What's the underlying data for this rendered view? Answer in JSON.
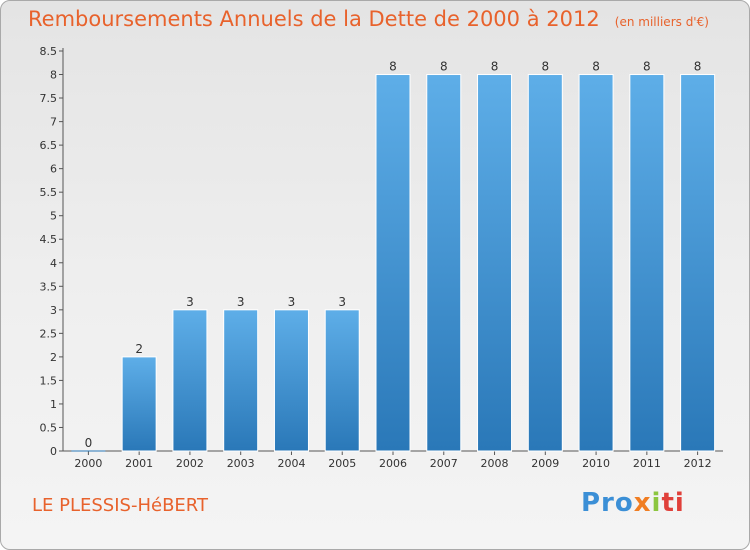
{
  "header": {
    "title": "Remboursements Annuels de la Dette de 2000 à 2012",
    "unit": "(en milliers d'€)"
  },
  "footer": {
    "commune": "LE PLESSIS-HéBERT",
    "logo_text": "Proxiti"
  },
  "colors": {
    "title": "#e8622c",
    "bar_light": "#5eaee8",
    "bar_dark": "#2a78b8"
  },
  "chart_data": {
    "type": "bar",
    "categories": [
      "2000",
      "2001",
      "2002",
      "2003",
      "2004",
      "2005",
      "2006",
      "2007",
      "2008",
      "2009",
      "2010",
      "2011",
      "2012"
    ],
    "values": [
      0,
      2,
      3,
      3,
      3,
      3,
      8,
      8,
      8,
      8,
      8,
      8,
      8
    ],
    "data_labels": [
      "0",
      "2",
      "3",
      "3",
      "3",
      "3",
      "8",
      "8",
      "8",
      "8",
      "8",
      "8",
      "8"
    ],
    "y_ticks": [
      "0",
      "0.5",
      "1",
      "1.5",
      "2",
      "2.5",
      "3",
      "3.5",
      "4",
      "4.5",
      "5",
      "5.5",
      "6",
      "6.5",
      "7",
      "7.5",
      "8",
      "8.5"
    ],
    "ylim": [
      0,
      8.5
    ],
    "grid": false
  }
}
